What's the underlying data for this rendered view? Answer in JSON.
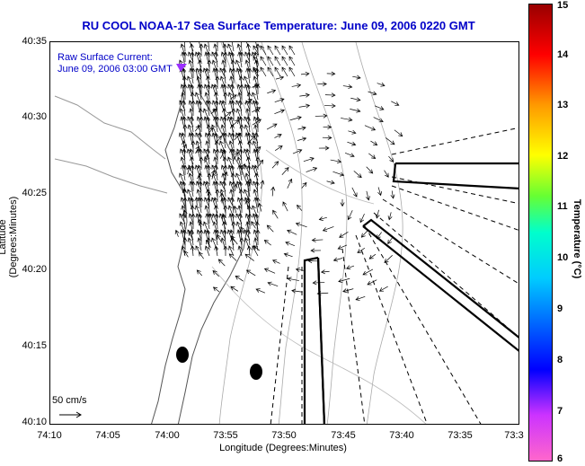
{
  "title": "RU COOL  NOAA-17  Sea Surface Temperature:  June 09, 2006 0220 GMT",
  "legend": {
    "line1": "Raw Surface Current:",
    "line2": "June 09, 2006 03:00 GMT"
  },
  "scale_label": "50 cm/s",
  "colors": {
    "title": "#0000c8",
    "legend_marker": "#9b30ff"
  },
  "chart_data": {
    "type": "map",
    "xlabel": "Longitude (Degrees:Minutes)",
    "ylabel": "Latitude (Degrees:Minutes)",
    "x_ticks": [
      "74:10",
      "74:05",
      "74:00",
      "73:55",
      "73:50",
      "73:45",
      "73:40",
      "73:35",
      "73:3"
    ],
    "y_ticks": [
      "40:35",
      "40:30",
      "40:25",
      "40:20",
      "40:15",
      "40:10"
    ],
    "colorbar": {
      "label": "Temperature (°C)",
      "ticks": [
        "15",
        "14",
        "13",
        "12",
        "11",
        "10",
        "9",
        "8",
        "7",
        "6"
      ],
      "range": [
        6,
        15
      ]
    }
  }
}
